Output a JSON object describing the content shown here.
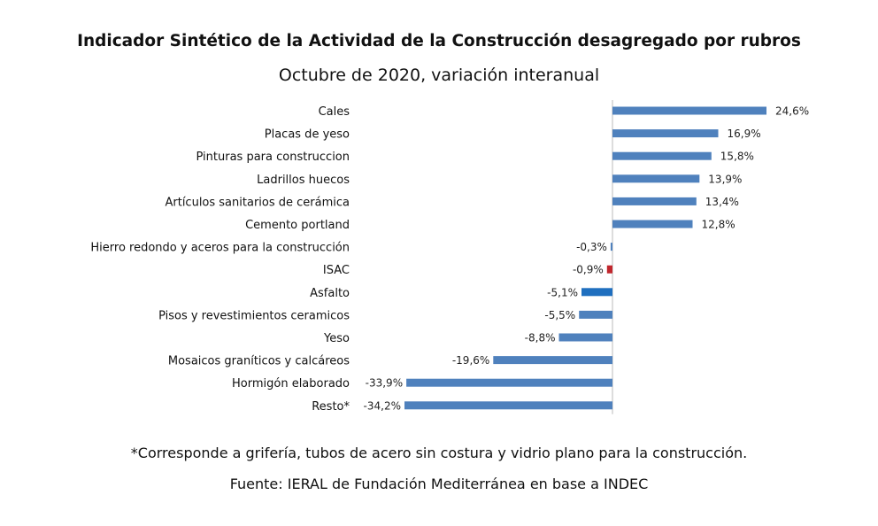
{
  "chart_data": {
    "type": "bar",
    "orientation": "horizontal",
    "title": "Indicador Sintético de la Actividad de la Construcción desagregado por rubros",
    "subtitle": "Octubre de 2020, variación interanual",
    "categories": [
      "Cales",
      "Placas de yeso",
      "Pinturas para construccion",
      "Ladrillos huecos",
      "Artículos sanitarios de cerámica",
      "Cemento portland",
      "Hierro redondo y aceros para la construcción",
      "ISAC",
      "Asfalto",
      "Pisos y revestimientos ceramicos",
      "Yeso",
      "Mosaicos graníticos y calcáreos",
      "Hormigón elaborado",
      "Resto*"
    ],
    "values": [
      24.6,
      16.9,
      15.8,
      13.9,
      13.4,
      12.8,
      -0.3,
      -0.9,
      -5.1,
      -5.5,
      -8.8,
      -19.6,
      -33.9,
      -34.2
    ],
    "value_labels": [
      "24,6%",
      "16,9%",
      "15,8%",
      "13,9%",
      "13,4%",
      "12,8%",
      "-0,3%",
      "-0,9%",
      "-5,1%",
      "-5,5%",
      "-8,8%",
      "-19,6%",
      "-33,9%",
      "-34,2%"
    ],
    "bar_colors": [
      "#4f81bd",
      "#4f81bd",
      "#4f81bd",
      "#4f81bd",
      "#4f81bd",
      "#4f81bd",
      "#4f81bd",
      "#c0262d",
      "#1f6fbf",
      "#4f81bd",
      "#4f81bd",
      "#4f81bd",
      "#4f81bd",
      "#4f81bd"
    ],
    "xlim": [
      -34.2,
      24.6
    ],
    "grid": false,
    "legend": "none"
  },
  "footnote": "*Corresponde a grifería, tubos de acero sin costura y vidrio plano para la construcción.",
  "source": "Fuente: IERAL de Fundación Mediterránea en base a INDEC"
}
